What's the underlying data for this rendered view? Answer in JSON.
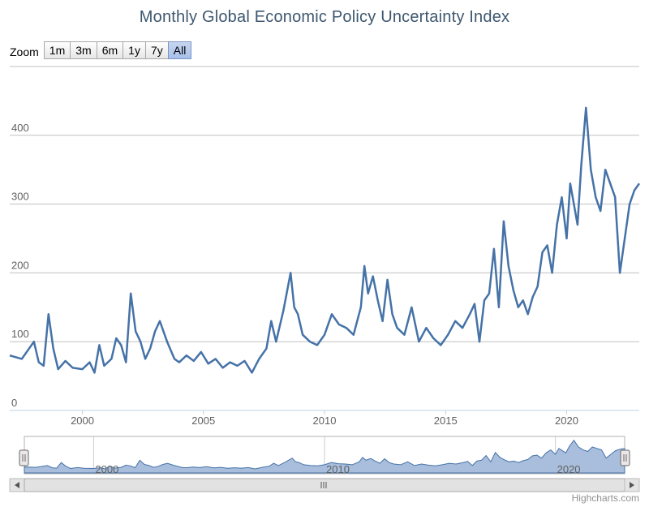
{
  "chart_data": {
    "type": "line",
    "title": "Monthly Global Economic Policy Uncertainty Index",
    "xlabel": "",
    "ylabel": "",
    "xlim": [
      1997.0,
      2023.0
    ],
    "ylim": [
      0,
      450
    ],
    "y_ticks": [
      0,
      100,
      200,
      300,
      400
    ],
    "x_ticks": [
      2000,
      2005,
      2010,
      2015,
      2020
    ],
    "navigator_ticks": [
      2000,
      2010,
      2020
    ],
    "grid": true,
    "legend": "none",
    "colors": {
      "line": "#4572a7",
      "navigator_fill": "#a9bedc",
      "navigator_line": "#4572a7",
      "grid": "#c0c0c0"
    },
    "series": [
      {
        "x": [
          1997.0,
          1997.5,
          1998.0,
          1998.2,
          1998.4,
          1998.6,
          1998.8,
          1999.0,
          1999.3,
          1999.6,
          2000.0,
          2000.3,
          2000.5,
          2000.7,
          2000.9,
          2001.2,
          2001.4,
          2001.6,
          2001.8,
          2002.0,
          2002.2,
          2002.4,
          2002.6,
          2002.8,
          2003.0,
          2003.2,
          2003.5,
          2003.8,
          2004.0,
          2004.3,
          2004.6,
          2004.9,
          2005.2,
          2005.5,
          2005.8,
          2006.1,
          2006.4,
          2006.7,
          2007.0,
          2007.3,
          2007.6,
          2007.8,
          2008.0,
          2008.3,
          2008.6,
          2008.75,
          2008.9,
          2009.1,
          2009.4,
          2009.7,
          2010.0,
          2010.3,
          2010.6,
          2010.9,
          2011.2,
          2011.5,
          2011.65,
          2011.8,
          2012.0,
          2012.2,
          2012.4,
          2012.6,
          2012.8,
          2013.0,
          2013.3,
          2013.6,
          2013.9,
          2014.2,
          2014.5,
          2014.8,
          2015.1,
          2015.4,
          2015.7,
          2016.0,
          2016.2,
          2016.4,
          2016.6,
          2016.8,
          2017.0,
          2017.2,
          2017.4,
          2017.6,
          2017.8,
          2018.0,
          2018.2,
          2018.4,
          2018.6,
          2018.8,
          2019.0,
          2019.2,
          2019.4,
          2019.6,
          2019.8,
          2020.0,
          2020.15,
          2020.3,
          2020.45,
          2020.6,
          2020.8,
          2021.0,
          2021.2,
          2021.4,
          2021.6,
          2021.8,
          2022.0,
          2022.2,
          2022.4,
          2022.6,
          2022.8,
          2023.0
        ],
        "y": [
          80,
          75,
          100,
          70,
          65,
          140,
          90,
          60,
          72,
          62,
          60,
          70,
          55,
          95,
          65,
          75,
          105,
          95,
          70,
          170,
          115,
          100,
          75,
          90,
          115,
          130,
          100,
          75,
          70,
          80,
          72,
          85,
          68,
          75,
          62,
          70,
          65,
          72,
          55,
          75,
          90,
          130,
          100,
          145,
          200,
          150,
          140,
          110,
          100,
          95,
          110,
          140,
          125,
          120,
          110,
          150,
          210,
          170,
          195,
          160,
          130,
          190,
          140,
          120,
          110,
          150,
          100,
          120,
          105,
          95,
          110,
          130,
          120,
          140,
          155,
          100,
          160,
          170,
          235,
          150,
          275,
          210,
          175,
          150,
          160,
          140,
          165,
          180,
          230,
          240,
          200,
          270,
          310,
          250,
          330,
          300,
          270,
          355,
          440,
          350,
          310,
          290,
          350,
          330,
          310,
          200,
          250,
          300,
          320,
          330
        ]
      }
    ]
  },
  "zoom": {
    "label": "Zoom",
    "buttons": [
      "1m",
      "3m",
      "6m",
      "1y",
      "7y",
      "All"
    ],
    "active": "All"
  },
  "credits": "Highcharts.com"
}
